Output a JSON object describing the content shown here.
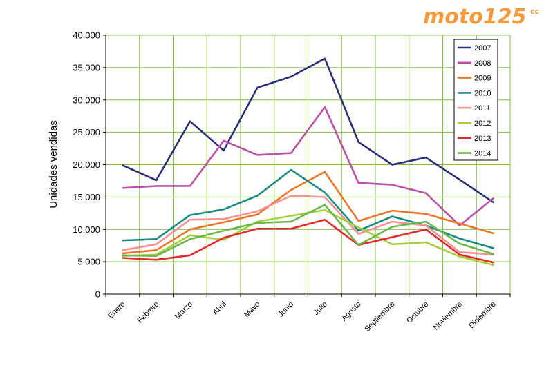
{
  "logo": {
    "text": "moto125",
    "suffix": "cc"
  },
  "chart_data": {
    "type": "line",
    "title": "",
    "xlabel": "",
    "ylabel": "Unidades vendidas",
    "ylim": [
      0,
      40000
    ],
    "yticks": [
      "0",
      "5.000",
      "10.000",
      "15.000",
      "20.000",
      "25.000",
      "30.000",
      "35.000",
      "40.000"
    ],
    "grid": true,
    "legend_position": "top-right",
    "categories": [
      "Enero",
      "Febrero",
      "Marzo",
      "Abril",
      "Mayo",
      "Junio",
      "Julio",
      "Agosto",
      "Septiembre",
      "Octubre",
      "Noviembre",
      "Diciembre"
    ],
    "series": [
      {
        "name": "2007",
        "color": "#2b2f7a",
        "values": [
          19900,
          17600,
          26700,
          22200,
          31900,
          33600,
          36400,
          23500,
          20000,
          21100,
          17700,
          14200
        ]
      },
      {
        "name": "2008",
        "color": "#b94fa6",
        "values": [
          16400,
          16700,
          16700,
          23700,
          21500,
          21800,
          28900,
          17200,
          16900,
          15600,
          10600,
          14800
        ]
      },
      {
        "name": "2009",
        "color": "#ee7427",
        "values": [
          6300,
          6800,
          10000,
          11100,
          12300,
          16100,
          18900,
          11300,
          12900,
          12400,
          10900,
          9400
        ]
      },
      {
        "name": "2010",
        "color": "#1b8a84",
        "values": [
          8300,
          8500,
          12200,
          13100,
          15200,
          19200,
          15700,
          9800,
          12000,
          10600,
          8600,
          7100
        ]
      },
      {
        "name": "2011",
        "color": "#f59191",
        "values": [
          6800,
          7700,
          11500,
          11600,
          12800,
          15200,
          15000,
          9300,
          11200,
          10600,
          6500,
          6100
        ]
      },
      {
        "name": "2012",
        "color": "#a6cf3d",
        "values": [
          5900,
          6100,
          9100,
          8400,
          11200,
          12100,
          13000,
          10300,
          7700,
          8000,
          5800,
          4500
        ]
      },
      {
        "name": "2013",
        "color": "#e42a2a",
        "values": [
          5600,
          5300,
          6000,
          8700,
          10100,
          10100,
          11500,
          7600,
          8800,
          10000,
          6100,
          4900
        ]
      },
      {
        "name": "2014",
        "color": "#6ab84a",
        "values": [
          6000,
          5900,
          8500,
          9800,
          11000,
          11200,
          13800,
          7600,
          10400,
          11200,
          7800,
          6200
        ]
      }
    ]
  }
}
